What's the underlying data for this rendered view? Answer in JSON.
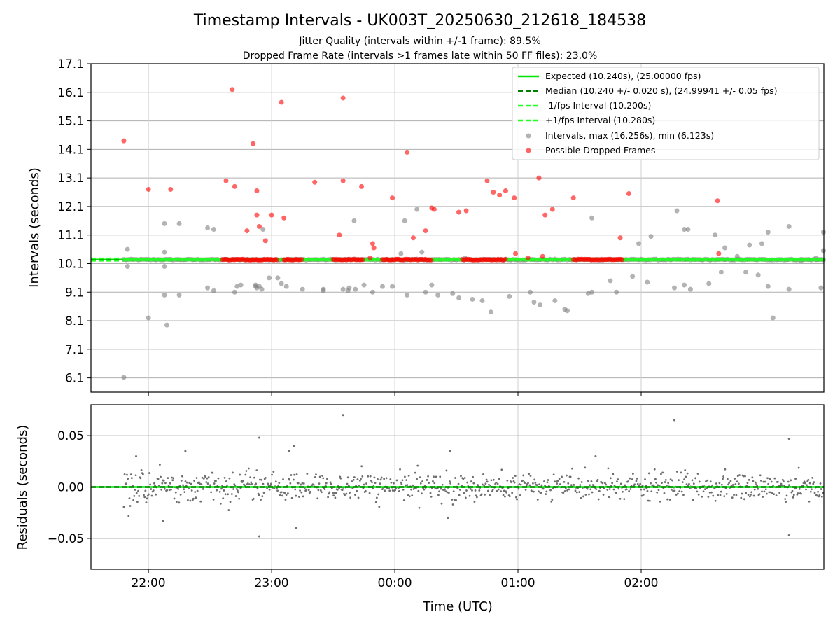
{
  "chart_data": [
    {
      "type": "scatter",
      "title": "Timestamp Intervals - UK003T_20250630_212618_184538",
      "subtitle_lines": [
        "Jitter Quality (intervals within +/-1 frame): 89.5%",
        "Dropped Frame Rate (intervals >1 frames late within 50 FF files): 23.0%"
      ],
      "ylabel": "Intervals (seconds)",
      "xlabel": "",
      "ylim": [
        5.6,
        17.1
      ],
      "yticks": [
        6.1,
        7.1,
        8.1,
        9.1,
        10.1,
        11.1,
        12.1,
        13.1,
        14.1,
        15.1,
        16.1,
        17.1
      ],
      "x_range_hours": [
        21.5333,
        27.4833
      ],
      "xticks": [
        {
          "value": 22.0,
          "label": "22:00"
        },
        {
          "value": 23.0,
          "label": "23:00"
        },
        {
          "value": 24.0,
          "label": "00:00"
        },
        {
          "value": 25.0,
          "label": "01:00"
        },
        {
          "value": 26.0,
          "label": "02:00"
        }
      ],
      "grid": true,
      "legend_position": "top-right",
      "reference_lines": [
        {
          "name": "Expected (10.240s), (25.00000 fps)",
          "y": 10.24,
          "style": "solid",
          "color": "#00e600"
        },
        {
          "name": "Median (10.240 +/- 0.020 s), (24.99941 +/- 0.05 fps)",
          "y": 10.24,
          "style": "dashed",
          "color": "#007f00"
        },
        {
          "name": "-1/fps Interval (10.200s)",
          "y": 10.2,
          "style": "dashed",
          "color": "#22ff22"
        },
        {
          "name": "+1/fps Interval (10.280s)",
          "y": 10.28,
          "style": "dashed",
          "color": "#22ff22"
        }
      ],
      "series": [
        {
          "name": "Intervals, max (16.256s), min (6.123s)",
          "color": "#808080",
          "points": [
            [
              21.8,
              6.12
            ],
            [
              21.83,
              10.6
            ],
            [
              21.83,
              10.0
            ],
            [
              22.0,
              8.2
            ],
            [
              22.15,
              7.95
            ],
            [
              22.13,
              9.0
            ],
            [
              22.13,
              10.0
            ],
            [
              22.13,
              10.5
            ],
            [
              22.13,
              11.5
            ],
            [
              22.25,
              9.0
            ],
            [
              22.25,
              11.5
            ],
            [
              22.48,
              9.25
            ],
            [
              22.48,
              11.35
            ],
            [
              22.53,
              9.15
            ],
            [
              22.53,
              11.3
            ],
            [
              22.7,
              9.1
            ],
            [
              22.72,
              9.3
            ],
            [
              22.75,
              9.35
            ],
            [
              22.87,
              9.3
            ],
            [
              22.87,
              9.35
            ],
            [
              22.88,
              9.25
            ],
            [
              22.9,
              9.3
            ],
            [
              22.92,
              9.2
            ],
            [
              22.93,
              11.3
            ],
            [
              22.98,
              9.6
            ],
            [
              23.05,
              9.6
            ],
            [
              23.08,
              9.4
            ],
            [
              23.12,
              9.3
            ],
            [
              23.25,
              9.2
            ],
            [
              23.42,
              9.2
            ],
            [
              23.42,
              9.15
            ],
            [
              23.58,
              9.2
            ],
            [
              23.62,
              9.15
            ],
            [
              23.63,
              9.25
            ],
            [
              23.67,
              11.6
            ],
            [
              23.68,
              9.2
            ],
            [
              23.75,
              9.35
            ],
            [
              23.82,
              9.1
            ],
            [
              23.9,
              9.3
            ],
            [
              23.98,
              9.3
            ],
            [
              24.05,
              10.45
            ],
            [
              24.08,
              11.6
            ],
            [
              24.1,
              9.0
            ],
            [
              24.18,
              12.0
            ],
            [
              24.22,
              10.5
            ],
            [
              24.25,
              9.1
            ],
            [
              24.3,
              9.35
            ],
            [
              24.35,
              9.0
            ],
            [
              24.47,
              9.05
            ],
            [
              24.52,
              8.9
            ],
            [
              24.57,
              10.3
            ],
            [
              24.63,
              8.85
            ],
            [
              24.71,
              8.8
            ],
            [
              24.78,
              8.4
            ],
            [
              24.93,
              8.95
            ],
            [
              25.1,
              9.1
            ],
            [
              25.13,
              8.75
            ],
            [
              25.18,
              8.65
            ],
            [
              25.3,
              8.8
            ],
            [
              25.38,
              8.5
            ],
            [
              25.4,
              8.45
            ],
            [
              25.57,
              9.05
            ],
            [
              25.6,
              9.1
            ],
            [
              25.6,
              11.7
            ],
            [
              25.75,
              9.5
            ],
            [
              25.8,
              9.1
            ],
            [
              25.93,
              9.65
            ],
            [
              25.98,
              10.8
            ],
            [
              26.05,
              9.45
            ],
            [
              26.08,
              11.05
            ],
            [
              26.27,
              9.25
            ],
            [
              26.29,
              11.95
            ],
            [
              26.35,
              9.35
            ],
            [
              26.35,
              11.3
            ],
            [
              26.38,
              11.3
            ],
            [
              26.4,
              9.2
            ],
            [
              26.55,
              9.4
            ],
            [
              26.6,
              11.1
            ],
            [
              26.65,
              9.8
            ],
            [
              26.68,
              10.65
            ],
            [
              26.78,
              10.35
            ],
            [
              26.85,
              9.8
            ],
            [
              26.88,
              10.75
            ],
            [
              26.95,
              9.7
            ],
            [
              26.98,
              10.8
            ],
            [
              27.03,
              9.3
            ],
            [
              27.03,
              11.2
            ],
            [
              27.07,
              8.2
            ],
            [
              27.2,
              9.2
            ],
            [
              27.2,
              11.4
            ],
            [
              27.3,
              10.2
            ],
            [
              27.42,
              10.3
            ],
            [
              27.46,
              9.25
            ],
            [
              27.48,
              11.2
            ],
            [
              27.48,
              10.55
            ]
          ]
        },
        {
          "name": "Possible Dropped Frames",
          "color": "#ff0000",
          "points": [
            [
              21.8,
              14.4
            ],
            [
              22.0,
              12.7
            ],
            [
              22.18,
              12.7
            ],
            [
              22.63,
              13.0
            ],
            [
              22.68,
              16.2
            ],
            [
              22.7,
              12.8
            ],
            [
              22.8,
              11.25
            ],
            [
              22.85,
              14.3
            ],
            [
              22.88,
              12.65
            ],
            [
              22.88,
              11.8
            ],
            [
              22.9,
              11.4
            ],
            [
              22.95,
              10.9
            ],
            [
              23.0,
              11.8
            ],
            [
              23.08,
              15.75
            ],
            [
              23.1,
              11.7
            ],
            [
              23.35,
              12.95
            ],
            [
              23.55,
              11.1
            ],
            [
              23.58,
              15.9
            ],
            [
              23.58,
              13.0
            ],
            [
              23.73,
              12.8
            ],
            [
              23.82,
              10.8
            ],
            [
              23.83,
              10.65
            ],
            [
              23.98,
              12.4
            ],
            [
              24.1,
              14.0
            ],
            [
              24.15,
              11.0
            ],
            [
              24.25,
              11.25
            ],
            [
              24.3,
              12.05
            ],
            [
              24.32,
              12.0
            ],
            [
              24.52,
              11.9
            ],
            [
              24.58,
              11.95
            ],
            [
              24.75,
              13.0
            ],
            [
              24.8,
              12.6
            ],
            [
              24.85,
              12.5
            ],
            [
              24.9,
              12.65
            ],
            [
              24.97,
              12.4
            ],
            [
              25.17,
              13.1
            ],
            [
              25.22,
              11.8
            ],
            [
              25.28,
              12.0
            ],
            [
              25.45,
              12.4
            ],
            [
              25.83,
              11.0
            ],
            [
              25.9,
              12.55
            ],
            [
              26.62,
              12.3
            ],
            [
              26.63,
              10.45
            ],
            [
              24.98,
              10.45
            ],
            [
              25.08,
              10.3
            ],
            [
              25.2,
              10.35
            ],
            [
              23.8,
              10.3
            ]
          ],
          "dense_band_y": 10.24,
          "dense_band_x_ranges": [
            [
              22.6,
              23.05
            ],
            [
              23.1,
              23.25
            ],
            [
              23.5,
              23.75
            ],
            [
              23.9,
              24.3
            ],
            [
              24.55,
              24.9
            ],
            [
              25.45,
              25.85
            ]
          ]
        },
        {
          "name": "",
          "color": "#22ff22",
          "dense_band_y": 10.24,
          "dense_band_x_range": [
            21.8,
            27.48
          ]
        }
      ]
    },
    {
      "type": "scatter",
      "ylabel": "Residuals (seconds)",
      "xlabel": "Time (UTC)",
      "ylim": [
        -0.08,
        0.08
      ],
      "yticks": [
        {
          "value": 0.05,
          "label": "0.05"
        },
        {
          "value": 0.0,
          "label": "0.00"
        },
        {
          "value": -0.05,
          "label": "−0.05"
        }
      ],
      "x_range_hours": [
        21.5333,
        27.4833
      ],
      "xticks": [
        {
          "value": 22.0,
          "label": "22:00"
        },
        {
          "value": 23.0,
          "label": "23:00"
        },
        {
          "value": 24.0,
          "label": "00:00"
        },
        {
          "value": 25.0,
          "label": "01:00"
        },
        {
          "value": 26.0,
          "label": "02:00"
        }
      ],
      "grid": true,
      "reference_lines": [
        {
          "y": 0.0,
          "style": "solid",
          "color": "#00e600"
        },
        {
          "y": 0.0,
          "style": "dashed",
          "color": "#007f00"
        }
      ],
      "series": [
        {
          "name": "",
          "color": "#6e6e6e",
          "x_range_hours": [
            21.8,
            27.48
          ],
          "typical_spread": 0.015,
          "outliers": [
            [
              23.58,
              0.07
            ],
            [
              26.27,
              0.065
            ],
            [
              22.9,
              0.048
            ],
            [
              22.9,
              -0.048
            ],
            [
              27.2,
              -0.047
            ],
            [
              27.2,
              0.047
            ],
            [
              23.18,
              0.04
            ],
            [
              23.14,
              0.035
            ],
            [
              21.9,
              0.03
            ],
            [
              24.45,
              0.035
            ],
            [
              25.63,
              0.03
            ],
            [
              23.2,
              -0.04
            ],
            [
              22.12,
              -0.033
            ],
            [
              24.43,
              -0.03
            ],
            [
              22.3,
              0.035
            ]
          ]
        }
      ]
    }
  ]
}
